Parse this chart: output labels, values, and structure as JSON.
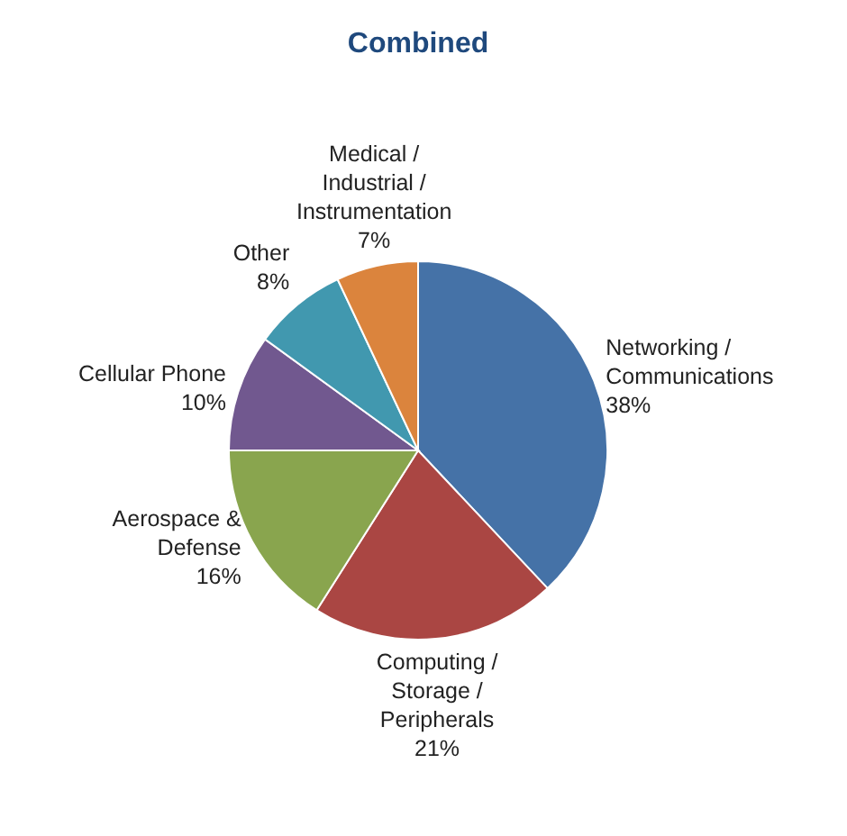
{
  "chart_data": {
    "type": "pie",
    "title": "Combined",
    "categories": [
      "Networking / Communications",
      "Computing / Storage / Peripherals",
      "Aerospace & Defense",
      "Cellular Phone",
      "Other",
      "Medical / Industrial / Instrumentation"
    ],
    "values": [
      38,
      21,
      16,
      10,
      8,
      7
    ],
    "colors": [
      "#4572a7",
      "#aa4643",
      "#89a54e",
      "#71588f",
      "#4198af",
      "#db843d"
    ],
    "value_labels": [
      "38%",
      "21%",
      "16%",
      "10%",
      "8%",
      "7%"
    ],
    "legend": false
  }
}
